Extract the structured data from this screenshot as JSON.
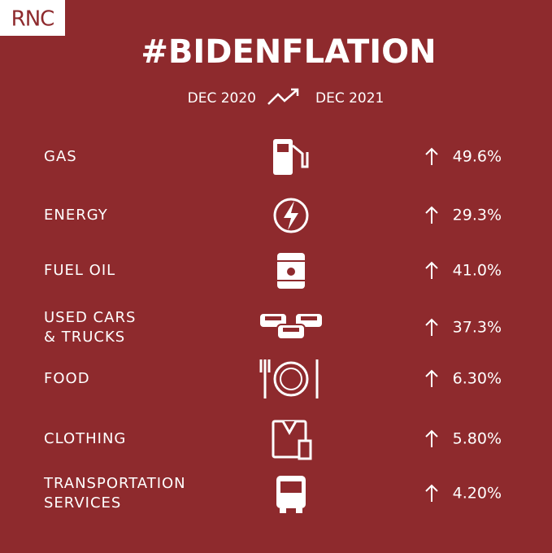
{
  "logo": "RNC",
  "title": "#BIDENFLATION",
  "period": {
    "from": "DEC 2020",
    "to": "DEC 2021"
  },
  "rows": [
    {
      "label": [
        "GAS"
      ],
      "change": "49.6%"
    },
    {
      "label": [
        "ENERGY"
      ],
      "change": "29.3%"
    },
    {
      "label": [
        "FUEL OIL"
      ],
      "change": "41.0%"
    },
    {
      "label": [
        "USED CARS",
        "& TRUCKS"
      ],
      "change": "37.3%"
    },
    {
      "label": [
        "FOOD"
      ],
      "change": "6.30%"
    },
    {
      "label": [
        "CLOTHING"
      ],
      "change": "5.80%"
    },
    {
      "label": [
        "TRANSPORTATION",
        "SERVICES"
      ],
      "change": "4.20%"
    }
  ]
}
